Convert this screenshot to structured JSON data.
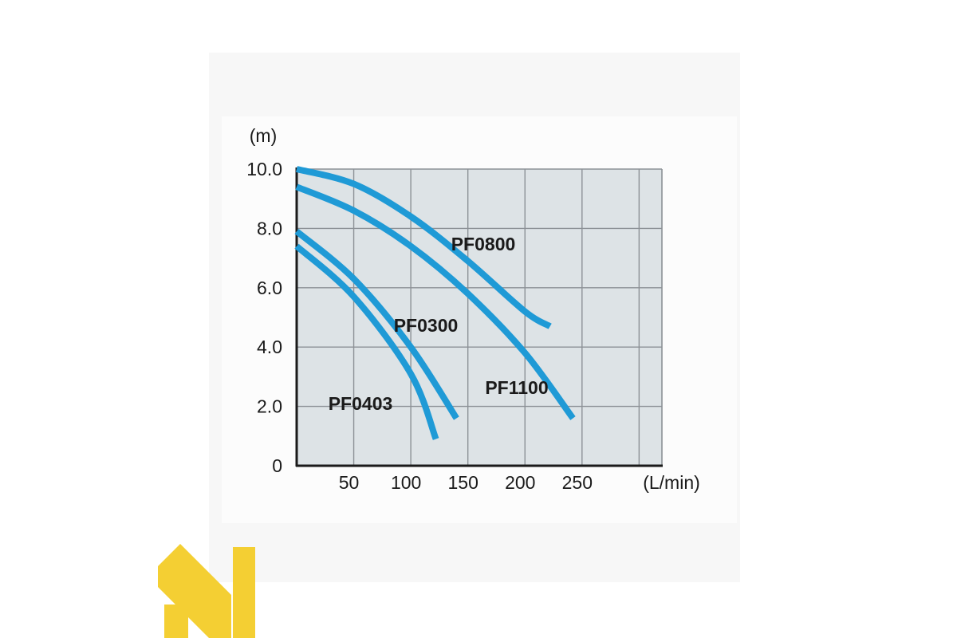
{
  "chart_data": {
    "type": "line",
    "title": "",
    "xlabel": "(L/min)",
    "ylabel": "(m)",
    "xlim": [
      0,
      320
    ],
    "ylim": [
      0,
      10
    ],
    "x_ticks": [
      {
        "value": 50,
        "label": "50"
      },
      {
        "value": 100,
        "label": "100"
      },
      {
        "value": 150,
        "label": "150"
      },
      {
        "value": 200,
        "label": "200"
      },
      {
        "value": 250,
        "label": "250"
      }
    ],
    "x_grid": [
      50,
      100,
      150,
      200,
      250,
      300
    ],
    "y_ticks": [
      {
        "value": 0,
        "label": "0"
      },
      {
        "value": 2,
        "label": "2.0"
      },
      {
        "value": 4,
        "label": "4.0"
      },
      {
        "value": 6,
        "label": "6.0"
      },
      {
        "value": 8,
        "label": "8.0"
      },
      {
        "value": 10,
        "label": "10.0"
      }
    ],
    "grid": true,
    "legend": "inline labels",
    "series": [
      {
        "name": "PF0800",
        "x": [
          0,
          50,
          100,
          150,
          200,
          222
        ],
        "y": [
          10.0,
          9.5,
          8.4,
          6.9,
          5.2,
          4.7
        ]
      },
      {
        "name": "PF1100",
        "x": [
          0,
          50,
          100,
          150,
          200,
          242
        ],
        "y": [
          9.4,
          8.6,
          7.4,
          5.8,
          3.8,
          1.6
        ]
      },
      {
        "name": "PF0300",
        "x": [
          0,
          50,
          100,
          140
        ],
        "y": [
          7.9,
          6.3,
          4.0,
          1.6
        ]
      },
      {
        "name": "PF0403",
        "x": [
          0,
          50,
          100,
          122
        ],
        "y": [
          7.4,
          5.7,
          3.1,
          0.9
        ]
      }
    ]
  },
  "colors": {
    "curve": "#1f9ad6",
    "plot_background": "#dde3e6",
    "grid": "#8c9196",
    "axis": "#1a1a1a",
    "logo": "#f4cf33"
  }
}
